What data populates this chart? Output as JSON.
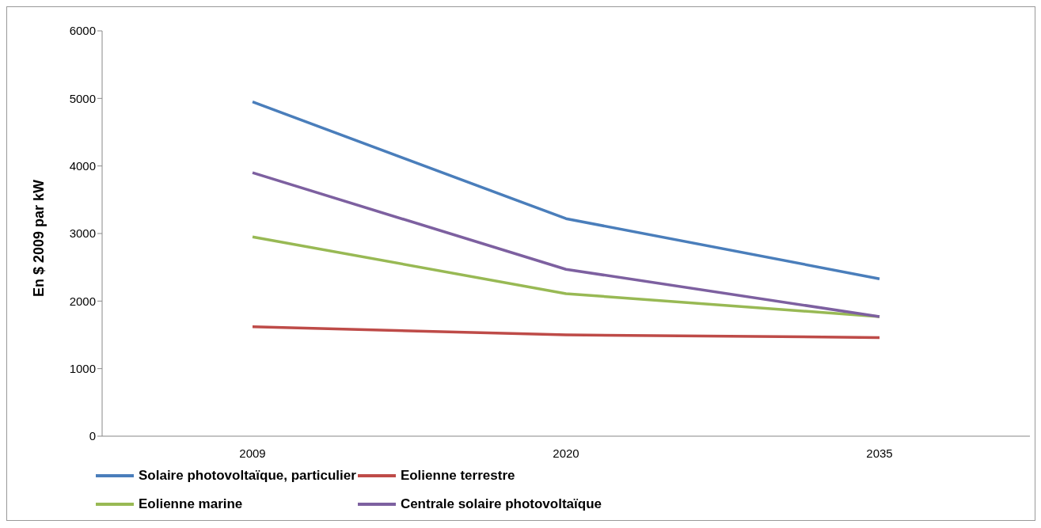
{
  "chart_data": {
    "type": "line",
    "ylabel": "En $ 2009 par kW",
    "categories": [
      "2009",
      "2020",
      "2035"
    ],
    "series": [
      {
        "name": "Solaire photovoltaïque, particulier",
        "color": "#4a7ebb",
        "values": [
          4950,
          3220,
          2330
        ]
      },
      {
        "name": "Eolienne terrestre",
        "color": "#be4b48",
        "values": [
          1620,
          1500,
          1460
        ]
      },
      {
        "name": "Eolienne marine",
        "color": "#98b954",
        "values": [
          2950,
          2110,
          1770
        ]
      },
      {
        "name": "Centrale solaire photovoltaïque",
        "color": "#7d60a0",
        "values": [
          3900,
          2470,
          1770
        ]
      }
    ],
    "ylim": [
      0,
      6000
    ],
    "yticks": [
      0,
      1000,
      2000,
      3000,
      4000,
      5000,
      6000
    ],
    "grid": false,
    "legend": "bottom",
    "marker": "none",
    "line_style": "solid"
  }
}
